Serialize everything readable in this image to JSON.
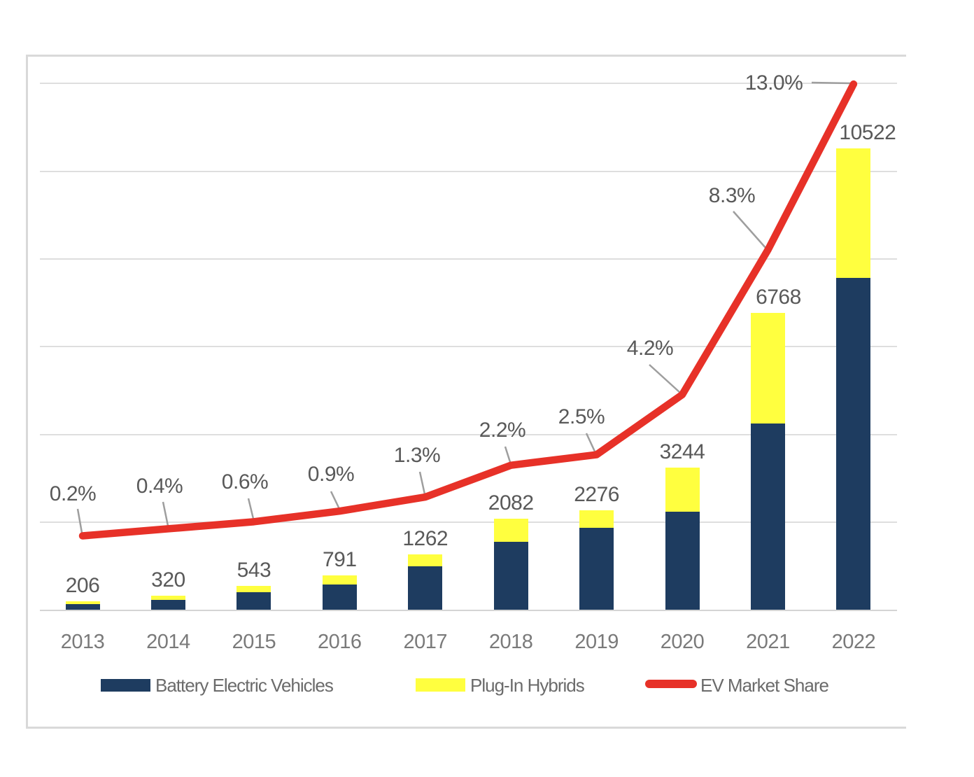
{
  "chart_data": {
    "type": "combo-stacked-bar-line",
    "categories": [
      "2013",
      "2014",
      "2015",
      "2016",
      "2017",
      "2018",
      "2019",
      "2020",
      "2021",
      "2022"
    ],
    "series": [
      {
        "name": "Battery Electric Vehicles",
        "type": "bar",
        "stack": "ev",
        "values": [
          128,
          224,
          400,
          576,
          990,
          1550,
          1876,
          2240,
          4250,
          7568
        ]
      },
      {
        "name": "Plug-In Hybrids",
        "type": "bar",
        "stack": "ev",
        "values": [
          78,
          96,
          143,
          215,
          272,
          532,
          400,
          1004,
          2518,
          2954
        ]
      },
      {
        "name": "EV Market Share",
        "type": "line",
        "values": [
          0.2,
          0.4,
          0.6,
          0.9,
          1.3,
          2.2,
          2.5,
          4.2,
          8.3,
          13.0
        ]
      }
    ],
    "total_labels": [
      "206",
      "320",
      "543",
      "791",
      "1262",
      "2082",
      "2276",
      "3244",
      "6768",
      "10522"
    ],
    "pct_labels": [
      "0.2%",
      "0.4%",
      "0.6%",
      "0.9%",
      "1.3%",
      "2.2%",
      "2.5%",
      "4.2%",
      "8.3%",
      "13.0%"
    ],
    "title": "",
    "xlabel": "",
    "ylabel": "",
    "y_axis": {
      "min": 0,
      "max": 12000,
      "gridline_step": 2000,
      "tick_labels_visible": false,
      "grid": true
    },
    "y2_axis": {
      "tick_labels_visible": false
    },
    "legend_position": "bottom"
  },
  "legend": {
    "bev": "Battery Electric Vehicles",
    "phev": "Plug-In Hybrids",
    "share": "EV Market Share"
  },
  "colors": {
    "bev": "#1e3c60",
    "phev": "#ffff3f",
    "share_line": "#e73128",
    "leader": "#9e9e9e",
    "gridline": "#dedede",
    "frame": "#d9d9d9"
  }
}
